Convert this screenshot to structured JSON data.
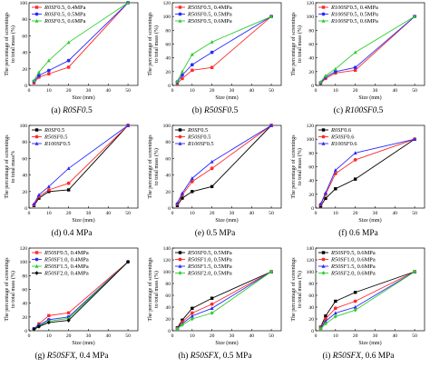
{
  "chart_data": [
    {
      "id": "a",
      "type": "line",
      "caption": {
        "letter": "(a) ",
        "italic": "R0SF0",
        "rest": ".5"
      },
      "ylabel": [
        "The percentage of screenings",
        "to total mass (%)"
      ],
      "xlabel": "Size (mm)",
      "xlim": [
        0,
        55
      ],
      "xticks": [
        0,
        10,
        20,
        30,
        40,
        50
      ],
      "ylim": [
        0,
        100
      ],
      "yticks": [
        0,
        20,
        40,
        60,
        80,
        100
      ],
      "x": [
        2.5,
        5,
        10,
        20,
        50
      ],
      "legend_position": "top-left",
      "series": [
        {
          "name": "R0SF0.5, 0.4MPa",
          "color": "#ff2a2a",
          "marker": "square",
          "values": [
            3,
            10,
            14,
            22,
            100
          ]
        },
        {
          "name": "R0SF0.5, 0.5MPa",
          "color": "#2a2aff",
          "marker": "circle",
          "values": [
            5,
            12,
            18,
            30,
            100
          ]
        },
        {
          "name": "R0SF0.5, 0.6MPa",
          "color": "#2ecc2e",
          "marker": "triangle",
          "values": [
            6,
            16,
            30,
            52,
            100
          ]
        }
      ]
    },
    {
      "id": "b",
      "type": "line",
      "caption": {
        "letter": "(b) ",
        "italic": "R50SF0",
        "rest": ".5"
      },
      "ylabel": [
        "The percentage of screenings",
        "to total mass (%)"
      ],
      "xlabel": "Size (mm)",
      "xlim": [
        0,
        55
      ],
      "xticks": [
        0,
        10,
        20,
        30,
        40,
        50
      ],
      "ylim": [
        0,
        120
      ],
      "yticks": [
        0,
        20,
        40,
        60,
        80,
        100,
        120
      ],
      "x": [
        2.5,
        5,
        10,
        20,
        50
      ],
      "legend_position": "top-left",
      "series": [
        {
          "name": "R50SF0.5, 0.4MPa",
          "color": "#ff2a2a",
          "marker": "square",
          "values": [
            3,
            10,
            22,
            26,
            100
          ]
        },
        {
          "name": "R50SF0.5, 0.5MPa",
          "color": "#2a2aff",
          "marker": "circle",
          "values": [
            5,
            15,
            30,
            48,
            100
          ]
        },
        {
          "name": "R50SF0.5, 0.6MPa",
          "color": "#2ecc2e",
          "marker": "triangle",
          "values": [
            6,
            20,
            45,
            63,
            100
          ]
        }
      ]
    },
    {
      "id": "c",
      "type": "line",
      "caption": {
        "letter": "(c) ",
        "italic": "R100SF0",
        "rest": ".5"
      },
      "ylabel": [
        "The percentage of screenings",
        "to total mass (%)"
      ],
      "xlabel": "Size (mm)",
      "xlim": [
        0,
        55
      ],
      "xticks": [
        0,
        10,
        20,
        30,
        40,
        50
      ],
      "ylim": [
        0,
        120
      ],
      "yticks": [
        0,
        20,
        40,
        60,
        80,
        100,
        120
      ],
      "x": [
        2.5,
        5,
        10,
        20,
        50
      ],
      "legend_position": "top-left",
      "series": [
        {
          "name": "R100SF0.5, 0.4MPa",
          "color": "#ff2a2a",
          "marker": "square",
          "values": [
            3,
            10,
            18,
            22,
            100
          ]
        },
        {
          "name": "R100SF0.5, 0.5MPa",
          "color": "#2a2aff",
          "marker": "circle",
          "values": [
            4,
            12,
            20,
            26,
            100
          ]
        },
        {
          "name": "R100SF0.5, 0.6MPa",
          "color": "#2ecc2e",
          "marker": "triangle",
          "values": [
            5,
            14,
            24,
            48,
            100
          ]
        }
      ]
    },
    {
      "id": "d",
      "type": "line",
      "caption": {
        "letter": "(d) ",
        "italic": "",
        "rest": "0.4 MPa"
      },
      "ylabel": [
        "The percentage of screenings",
        "to total mass%"
      ],
      "xlabel": "Size (mm)",
      "xlim": [
        0,
        55
      ],
      "xticks": [
        0,
        10,
        20,
        30,
        40,
        50
      ],
      "ylim": [
        0,
        100
      ],
      "yticks": [
        0,
        20,
        40,
        60,
        80,
        100
      ],
      "x": [
        2.5,
        5,
        10,
        20,
        50
      ],
      "legend_position": "top-left",
      "series": [
        {
          "name": "R0SF0.5",
          "color": "#000000",
          "marker": "square",
          "values": [
            3,
            12,
            20,
            22,
            100
          ]
        },
        {
          "name": "R50SF0.5",
          "color": "#ff2a2a",
          "marker": "circle",
          "values": [
            4,
            14,
            22,
            30,
            100
          ]
        },
        {
          "name": "R100SF0.5",
          "color": "#2a2aff",
          "marker": "triangle",
          "values": [
            5,
            16,
            26,
            48,
            100
          ]
        }
      ]
    },
    {
      "id": "e",
      "type": "line",
      "caption": {
        "letter": "(e) ",
        "italic": "",
        "rest": "0.5 MPa"
      },
      "ylabel": [
        "The percentage of screenings",
        "to total mass (%)"
      ],
      "xlabel": "Size (mm)",
      "xlim": [
        0,
        55
      ],
      "xticks": [
        0,
        10,
        20,
        30,
        40,
        50
      ],
      "ylim": [
        0,
        100
      ],
      "yticks": [
        0,
        20,
        40,
        60,
        80,
        100
      ],
      "x": [
        2.5,
        5,
        10,
        20,
        50
      ],
      "legend_position": "top-left",
      "series": [
        {
          "name": "R0SF0.5",
          "color": "#000000",
          "marker": "square",
          "values": [
            3,
            12,
            20,
            26,
            100
          ]
        },
        {
          "name": "R50SF0.5",
          "color": "#ff2a2a",
          "marker": "circle",
          "values": [
            5,
            16,
            32,
            48,
            100
          ]
        },
        {
          "name": "R100SF0.5",
          "color": "#2a2aff",
          "marker": "triangle",
          "values": [
            6,
            18,
            36,
            56,
            100
          ]
        }
      ]
    },
    {
      "id": "f",
      "type": "line",
      "caption": {
        "letter": "(f) ",
        "italic": "",
        "rest": "0.6 MPa"
      },
      "ylabel": [
        "The percentage of screenings",
        "to total mass (%)"
      ],
      "xlabel": "Size (mm)",
      "xlim": [
        0,
        55
      ],
      "xticks": [
        0,
        10,
        20,
        30,
        40,
        50
      ],
      "ylim": [
        0,
        120
      ],
      "yticks": [
        0,
        20,
        40,
        60,
        80,
        100,
        120
      ],
      "x": [
        2.5,
        5,
        10,
        20,
        50
      ],
      "legend_position": "top-left",
      "series": [
        {
          "name": "R0SF0.6",
          "color": "#000000",
          "marker": "square",
          "values": [
            3,
            14,
            28,
            42,
            100
          ]
        },
        {
          "name": "R50SF0.6",
          "color": "#ff2a2a",
          "marker": "circle",
          "values": [
            5,
            20,
            50,
            70,
            100
          ]
        },
        {
          "name": "R100SF0.6",
          "color": "#2a2aff",
          "marker": "triangle",
          "values": [
            6,
            22,
            55,
            80,
            100
          ]
        }
      ]
    },
    {
      "id": "g",
      "type": "line",
      "caption": {
        "letter": "(g) ",
        "italic": "R50SFX",
        "rest": ", 0.4 MPa"
      },
      "ylabel": [
        "The percentage of screenings",
        "to total mass (%)"
      ],
      "xlabel": "Size (mm)",
      "xlim": [
        0,
        55
      ],
      "xticks": [
        0,
        10,
        20,
        30,
        40,
        50
      ],
      "ylim": [
        0,
        120
      ],
      "yticks": [
        0,
        20,
        40,
        60,
        80,
        100,
        120
      ],
      "x": [
        2.5,
        5,
        10,
        20,
        50
      ],
      "legend_position": "top-left",
      "series": [
        {
          "name": "R50SF0.5, 0.4MPa",
          "color": "#ff2a2a",
          "marker": "square",
          "values": [
            3,
            10,
            22,
            26,
            100
          ]
        },
        {
          "name": "R50SF1.0, 0.4MPa",
          "color": "#2a2aff",
          "marker": "circle",
          "values": [
            3,
            8,
            16,
            20,
            100
          ]
        },
        {
          "name": "R50SF1.5, 0.4MPa",
          "color": "#2ecc2e",
          "marker": "triangle",
          "values": [
            2,
            7,
            14,
            18,
            100
          ]
        },
        {
          "name": "R50SF2.0, 0.4MPa",
          "color": "#000000",
          "marker": "diamond",
          "values": [
            2,
            6,
            12,
            15,
            100
          ]
        }
      ]
    },
    {
      "id": "h",
      "type": "line",
      "caption": {
        "letter": "(h) ",
        "italic": "R50SFX",
        "rest": ", 0.5 MPa"
      },
      "ylabel": [
        "The percentage of screenings",
        "to total mass (%)"
      ],
      "xlabel": "Size (mm)",
      "xlim": [
        0,
        55
      ],
      "xticks": [
        0,
        10,
        20,
        30,
        40,
        50
      ],
      "ylim": [
        0,
        140
      ],
      "yticks": [
        0,
        20,
        40,
        60,
        80,
        100,
        120,
        140
      ],
      "x": [
        2.5,
        5,
        10,
        20,
        50
      ],
      "legend_position": "top-left",
      "series": [
        {
          "name": "R50SF0.5, 0.5MPa",
          "color": "#000000",
          "marker": "square",
          "values": [
            5,
            18,
            38,
            55,
            100
          ]
        },
        {
          "name": "R50SF1.0, 0.5MPa",
          "color": "#ff2a2a",
          "marker": "circle",
          "values": [
            4,
            15,
            30,
            45,
            100
          ]
        },
        {
          "name": "R50SF1.5, 0.5MPa",
          "color": "#2a2aff",
          "marker": "triangle",
          "values": [
            4,
            12,
            25,
            38,
            100
          ]
        },
        {
          "name": "R50SF2.0, 0.5MPa",
          "color": "#2ecc2e",
          "marker": "diamond",
          "values": [
            3,
            10,
            20,
            30,
            100
          ]
        }
      ]
    },
    {
      "id": "i",
      "type": "line",
      "caption": {
        "letter": "(i) ",
        "italic": "R50SFX",
        "rest": ", 0.6 MPa"
      },
      "ylabel": [
        "The percentage of screenings",
        "to total mass (%)"
      ],
      "xlabel": "Size (mm)",
      "xlim": [
        0,
        55
      ],
      "xticks": [
        0,
        10,
        20,
        30,
        40,
        50
      ],
      "ylim": [
        0,
        140
      ],
      "yticks": [
        0,
        20,
        40,
        60,
        80,
        100,
        120,
        140
      ],
      "x": [
        2.5,
        5,
        10,
        20,
        50
      ],
      "legend_position": "top-left",
      "series": [
        {
          "name": "R50SF0.5, 0.6MPa",
          "color": "#000000",
          "marker": "square",
          "values": [
            6,
            25,
            50,
            65,
            100
          ]
        },
        {
          "name": "R50SF1.0, 0.6MPa",
          "color": "#ff2a2a",
          "marker": "circle",
          "values": [
            5,
            20,
            38,
            50,
            100
          ]
        },
        {
          "name": "R50SF1.5, 0.6MPa",
          "color": "#2a2aff",
          "marker": "triangle",
          "values": [
            4,
            16,
            30,
            40,
            100
          ]
        },
        {
          "name": "R50SF2.0, 0.6MPa",
          "color": "#2ecc2e",
          "marker": "diamond",
          "values": [
            3,
            12,
            24,
            35,
            100
          ]
        }
      ]
    }
  ]
}
